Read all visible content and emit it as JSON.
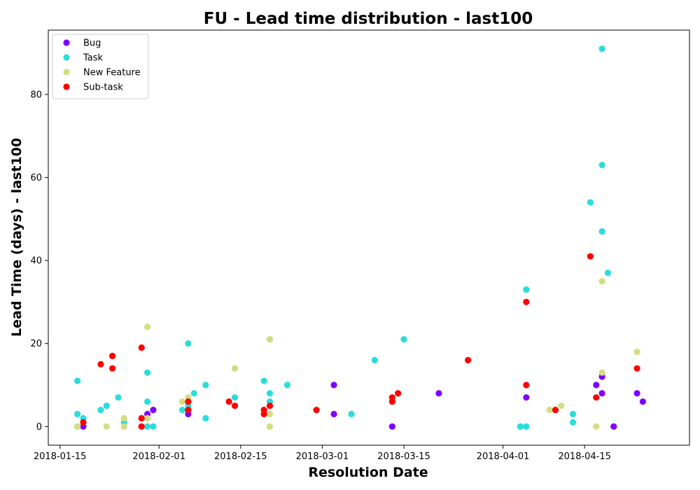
{
  "chart_data": {
    "type": "scatter",
    "title": "FU - Lead time distribution - last100",
    "xlabel": "Resolution Date",
    "ylabel": "Lead Time (days) - last100",
    "x_type": "date",
    "xlim": [
      "2018-01-13",
      "2018-05-03"
    ],
    "ylim": [
      -4.5,
      95.5
    ],
    "x_ticks": [
      "2018-01-15",
      "2018-02-01",
      "2018-02-15",
      "2018-03-01",
      "2018-03-15",
      "2018-04-01",
      "2018-04-15"
    ],
    "y_ticks": [
      0,
      20,
      40,
      60,
      80
    ],
    "legend_position": "upper-left",
    "grid": false,
    "series": [
      {
        "name": "Bug",
        "color": "#8000ff",
        "points": [
          {
            "x": "2018-01-19",
            "y": 0
          },
          {
            "x": "2018-01-30",
            "y": 3
          },
          {
            "x": "2018-01-31",
            "y": 4
          },
          {
            "x": "2018-02-06",
            "y": 3
          },
          {
            "x": "2018-03-03",
            "y": 10
          },
          {
            "x": "2018-03-03",
            "y": 3
          },
          {
            "x": "2018-03-13",
            "y": 0
          },
          {
            "x": "2018-03-21",
            "y": 8
          },
          {
            "x": "2018-04-04",
            "y": 0
          },
          {
            "x": "2018-04-05",
            "y": 7
          },
          {
            "x": "2018-04-17",
            "y": 10
          },
          {
            "x": "2018-04-18",
            "y": 12
          },
          {
            "x": "2018-04-18",
            "y": 8
          },
          {
            "x": "2018-04-20",
            "y": 0
          },
          {
            "x": "2018-04-24",
            "y": 8
          },
          {
            "x": "2018-04-25",
            "y": 6
          }
        ]
      },
      {
        "name": "Task",
        "color": "#2adddd",
        "points": [
          {
            "x": "2018-01-18",
            "y": 11
          },
          {
            "x": "2018-01-18",
            "y": 3
          },
          {
            "x": "2018-01-19",
            "y": 2
          },
          {
            "x": "2018-01-18",
            "y": 0
          },
          {
            "x": "2018-01-22",
            "y": 4
          },
          {
            "x": "2018-01-23",
            "y": 5
          },
          {
            "x": "2018-01-25",
            "y": 7
          },
          {
            "x": "2018-01-26",
            "y": 1
          },
          {
            "x": "2018-01-30",
            "y": 13
          },
          {
            "x": "2018-01-30",
            "y": 6
          },
          {
            "x": "2018-01-30",
            "y": 0
          },
          {
            "x": "2018-01-31",
            "y": 0
          },
          {
            "x": "2018-02-05",
            "y": 4
          },
          {
            "x": "2018-02-06",
            "y": 20
          },
          {
            "x": "2018-02-06",
            "y": 5
          },
          {
            "x": "2018-02-07",
            "y": 8
          },
          {
            "x": "2018-02-09",
            "y": 10
          },
          {
            "x": "2018-02-09",
            "y": 2
          },
          {
            "x": "2018-02-14",
            "y": 14
          },
          {
            "x": "2018-02-14",
            "y": 7
          },
          {
            "x": "2018-02-19",
            "y": 11
          },
          {
            "x": "2018-02-20",
            "y": 21
          },
          {
            "x": "2018-02-20",
            "y": 8
          },
          {
            "x": "2018-02-20",
            "y": 6
          },
          {
            "x": "2018-02-23",
            "y": 10
          },
          {
            "x": "2018-03-06",
            "y": 3
          },
          {
            "x": "2018-03-10",
            "y": 16
          },
          {
            "x": "2018-03-15",
            "y": 21
          },
          {
            "x": "2018-04-04",
            "y": 0
          },
          {
            "x": "2018-04-05",
            "y": 33
          },
          {
            "x": "2018-04-05",
            "y": 0
          },
          {
            "x": "2018-04-13",
            "y": 3
          },
          {
            "x": "2018-04-13",
            "y": 1
          },
          {
            "x": "2018-04-16",
            "y": 54
          },
          {
            "x": "2018-04-18",
            "y": 91
          },
          {
            "x": "2018-04-18",
            "y": 63
          },
          {
            "x": "2018-04-18",
            "y": 47
          },
          {
            "x": "2018-04-19",
            "y": 37
          }
        ]
      },
      {
        "name": "New Feature",
        "color": "#d4dd80",
        "points": [
          {
            "x": "2018-01-18",
            "y": 0
          },
          {
            "x": "2018-01-23",
            "y": 0
          },
          {
            "x": "2018-01-26",
            "y": 2
          },
          {
            "x": "2018-01-26",
            "y": 0
          },
          {
            "x": "2018-01-30",
            "y": 24
          },
          {
            "x": "2018-01-30",
            "y": 2
          },
          {
            "x": "2018-02-05",
            "y": 6
          },
          {
            "x": "2018-02-06",
            "y": 7
          },
          {
            "x": "2018-02-14",
            "y": 14
          },
          {
            "x": "2018-02-20",
            "y": 21
          },
          {
            "x": "2018-02-20",
            "y": 3
          },
          {
            "x": "2018-02-20",
            "y": 0
          },
          {
            "x": "2018-04-09",
            "y": 4
          },
          {
            "x": "2018-04-11",
            "y": 5
          },
          {
            "x": "2018-04-17",
            "y": 0
          },
          {
            "x": "2018-04-18",
            "y": 35
          },
          {
            "x": "2018-04-18",
            "y": 13
          },
          {
            "x": "2018-04-24",
            "y": 18
          }
        ]
      },
      {
        "name": "Sub-task",
        "color": "#ff0000",
        "points": [
          {
            "x": "2018-01-19",
            "y": 1
          },
          {
            "x": "2018-01-22",
            "y": 15
          },
          {
            "x": "2018-01-24",
            "y": 17
          },
          {
            "x": "2018-01-24",
            "y": 14
          },
          {
            "x": "2018-01-29",
            "y": 19
          },
          {
            "x": "2018-01-29",
            "y": 2
          },
          {
            "x": "2018-01-29",
            "y": 0
          },
          {
            "x": "2018-02-06",
            "y": 6
          },
          {
            "x": "2018-02-06",
            "y": 4
          },
          {
            "x": "2018-02-13",
            "y": 6
          },
          {
            "x": "2018-02-14",
            "y": 5
          },
          {
            "x": "2018-02-19",
            "y": 4
          },
          {
            "x": "2018-02-19",
            "y": 3
          },
          {
            "x": "2018-02-20",
            "y": 5
          },
          {
            "x": "2018-02-28",
            "y": 4
          },
          {
            "x": "2018-03-13",
            "y": 7
          },
          {
            "x": "2018-03-13",
            "y": 6
          },
          {
            "x": "2018-03-14",
            "y": 8
          },
          {
            "x": "2018-03-26",
            "y": 16
          },
          {
            "x": "2018-04-05",
            "y": 30
          },
          {
            "x": "2018-04-05",
            "y": 10
          },
          {
            "x": "2018-04-10",
            "y": 4
          },
          {
            "x": "2018-04-16",
            "y": 41
          },
          {
            "x": "2018-04-17",
            "y": 7
          },
          {
            "x": "2018-04-24",
            "y": 14
          }
        ]
      }
    ]
  }
}
